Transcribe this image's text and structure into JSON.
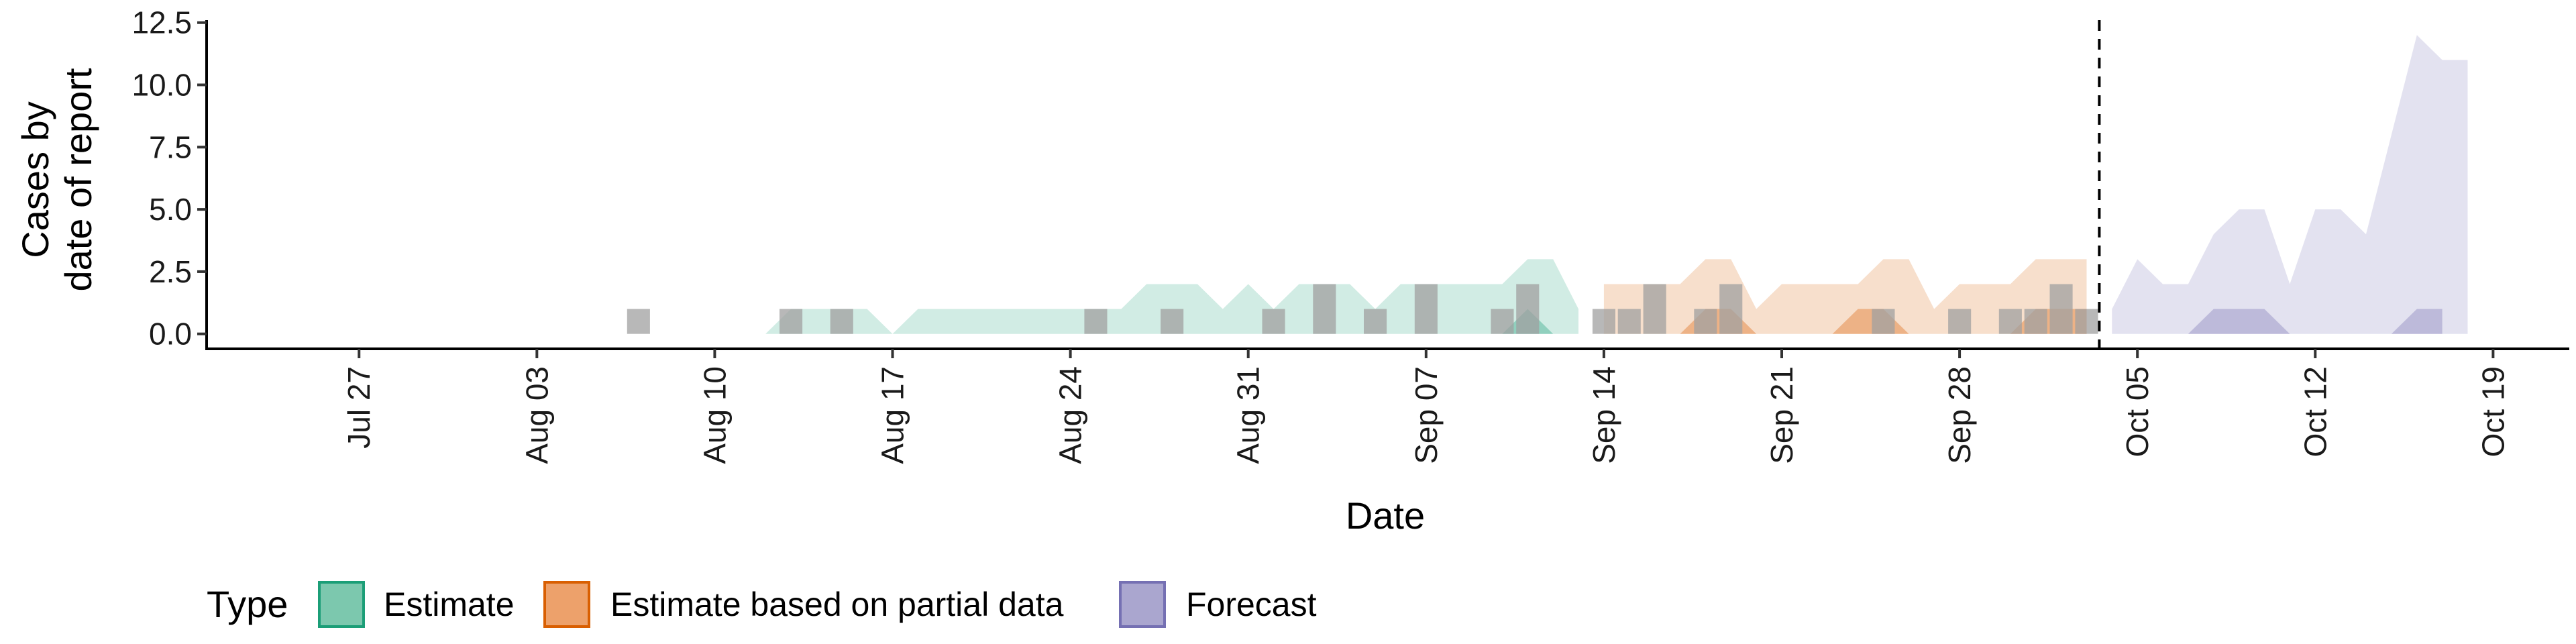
{
  "chart_data": {
    "type": "area",
    "xlabel": "Date",
    "ylabel_lines": [
      "Cases by",
      "date of report"
    ],
    "ylim": [
      -0.6,
      12.6
    ],
    "xlim": [
      "2020-07-21",
      "2020-10-22"
    ],
    "y_ticks": [
      "0.0",
      "2.5",
      "5.0",
      "7.5",
      "10.0",
      "12.5"
    ],
    "x_ticks": [
      {
        "date": "2020-07-27",
        "label": "Jul 27"
      },
      {
        "date": "2020-08-03",
        "label": "Aug 03"
      },
      {
        "date": "2020-08-10",
        "label": "Aug 10"
      },
      {
        "date": "2020-08-17",
        "label": "Aug 17"
      },
      {
        "date": "2020-08-24",
        "label": "Aug 24"
      },
      {
        "date": "2020-08-31",
        "label": "Aug 31"
      },
      {
        "date": "2020-09-07",
        "label": "Sep 07"
      },
      {
        "date": "2020-09-14",
        "label": "Sep 14"
      },
      {
        "date": "2020-09-21",
        "label": "Sep 21"
      },
      {
        "date": "2020-09-28",
        "label": "Sep 28"
      },
      {
        "date": "2020-10-05",
        "label": "Oct 05"
      },
      {
        "date": "2020-10-12",
        "label": "Oct 12"
      },
      {
        "date": "2020-10-19",
        "label": "Oct 19"
      }
    ],
    "forecast_line_date": "2020-10-03",
    "legend": {
      "title": "Type",
      "placement": "bottom-left",
      "entries": [
        {
          "label": "Estimate",
          "fill": "#7cc8ae",
          "stroke": "#1b9e77"
        },
        {
          "label": "Estimate based on partial data",
          "fill": "#eda16b",
          "stroke": "#d95f02"
        },
        {
          "label": "Forecast",
          "fill": "#aaa6cf",
          "stroke": "#7570b3"
        }
      ]
    },
    "series": [
      {
        "type": "Estimate",
        "color": "#1b9e77",
        "start_date": "2020-07-21",
        "upper": [
          0,
          0,
          0,
          0,
          0,
          0,
          0,
          0,
          0,
          0,
          0,
          0,
          0,
          0,
          0,
          0,
          0,
          0,
          0,
          0,
          0,
          0,
          0,
          0,
          0,
          0,
          0,
          0,
          0,
          0,
          0,
          0,
          0,
          0,
          0,
          0,
          0,
          0,
          0,
          0,
          0,
          0,
          0,
          0,
          0,
          0,
          0,
          0,
          0,
          0,
          0,
          0,
          0,
          0,
          0,
          0,
          0,
          0,
          0,
          0,
          0,
          0,
          0,
          0,
          0,
          0,
          0,
          0,
          0,
          0,
          0,
          0,
          0,
          0,
          0,
          0,
          0,
          0,
          0,
          0,
          0,
          0,
          0,
          0,
          0,
          0,
          0,
          0,
          0,
          0,
          0,
          0,
          0,
          0,
          0,
          0
        ],
        "lower": [
          0,
          0,
          0,
          0,
          0,
          0,
          0,
          0,
          0,
          0,
          0,
          0,
          0,
          0,
          0,
          0,
          0,
          0,
          0,
          0,
          0,
          0,
          0,
          0,
          0,
          0,
          0,
          0,
          0,
          0,
          0,
          0,
          0,
          0,
          0,
          0,
          0,
          0,
          0,
          0,
          0,
          0,
          0,
          0,
          0,
          0,
          0,
          0,
          0,
          0,
          0,
          0,
          0,
          0,
          0,
          0,
          0,
          0,
          0,
          0,
          0,
          0,
          0,
          0,
          0,
          0,
          0,
          0,
          0,
          0,
          0,
          0,
          0,
          0,
          0,
          0,
          0,
          0,
          0,
          0,
          0,
          0,
          0,
          0,
          0,
          0,
          0,
          0,
          0,
          0,
          0,
          0,
          0,
          0,
          0,
          0
        ]
      }
    ],
    "bands": [
      {
        "type": "Estimate",
        "x": [
          "2020-07-26",
          "2020-08-12",
          "2020-08-13",
          "2020-08-14",
          "2020-08-15",
          "2020-08-16",
          "2020-08-17",
          "2020-08-18",
          "2020-08-25",
          "2020-08-26",
          "2020-08-27",
          "2020-08-28",
          "2020-08-29",
          "2020-08-30",
          "2020-08-31",
          "2020-09-01",
          "2020-09-02",
          "2020-09-03",
          "2020-09-04",
          "2020-09-05",
          "2020-09-06",
          "2020-09-07",
          "2020-09-08",
          "2020-09-09",
          "2020-09-10",
          "2020-09-11",
          "2020-09-12",
          "2020-09-13"
        ],
        "upper": [
          0,
          0,
          1,
          1,
          1,
          1,
          0,
          1,
          1,
          1,
          2,
          2,
          2,
          1,
          2,
          1,
          2,
          2,
          2,
          1,
          2,
          2,
          2,
          2,
          2,
          3,
          3,
          1
        ],
        "lower": [
          0,
          0,
          0,
          0,
          0,
          0,
          0,
          0,
          0,
          0,
          0,
          0,
          0,
          0,
          0,
          0,
          0,
          0,
          0,
          0,
          0,
          0,
          0,
          0,
          0,
          0,
          0,
          0
        ],
        "inner_upper_x": [
          "2020-09-09",
          "2020-09-10",
          "2020-09-11",
          "2020-09-12"
        ],
        "inner_upper": [
          0,
          0,
          1,
          0
        ]
      },
      {
        "type": "Estimate based on partial data",
        "x": [
          "2020-09-14",
          "2020-09-15",
          "2020-09-16",
          "2020-09-17",
          "2020-09-18",
          "2020-09-19",
          "2020-09-20",
          "2020-09-21",
          "2020-09-22",
          "2020-09-23",
          "2020-09-24",
          "2020-09-25",
          "2020-09-26",
          "2020-09-27",
          "2020-09-28",
          "2020-09-29",
          "2020-09-30",
          "2020-10-01",
          "2020-10-02",
          "2020-10-03"
        ],
        "upper": [
          2,
          2,
          2,
          2,
          3,
          3,
          1,
          2,
          2,
          2,
          2,
          3,
          3,
          1,
          2,
          2,
          2,
          3,
          3,
          3
        ],
        "lower": [
          0,
          0,
          0,
          0,
          0,
          0,
          0,
          0,
          0,
          0,
          0,
          0,
          0,
          0,
          0,
          0,
          0,
          0,
          0,
          0
        ],
        "inner_upper_x": [
          "2020-09-17",
          "2020-09-18",
          "2020-09-19",
          "2020-09-20",
          "2020-09-23",
          "2020-09-24",
          "2020-09-25",
          "2020-09-26",
          "2020-09-29",
          "2020-09-30",
          "2020-10-01",
          "2020-10-02",
          "2020-10-03"
        ],
        "inner_upper": [
          0,
          1,
          1,
          0,
          0,
          1,
          1,
          0,
          0,
          0,
          1,
          1,
          1
        ]
      },
      {
        "type": "Forecast",
        "x": [
          "2020-10-04",
          "2020-10-05",
          "2020-10-06",
          "2020-10-07",
          "2020-10-08",
          "2020-10-09",
          "2020-10-10",
          "2020-10-11",
          "2020-10-12",
          "2020-10-13",
          "2020-10-14",
          "2020-10-15",
          "2020-10-16",
          "2020-10-17",
          "2020-10-18"
        ],
        "upper": [
          1,
          3,
          2,
          2,
          4,
          5,
          5,
          2,
          5,
          5,
          4,
          8,
          12,
          11,
          11
        ],
        "lower": [
          0,
          0,
          0,
          0,
          0,
          0,
          0,
          0,
          0,
          0,
          0,
          0,
          0,
          0,
          0
        ],
        "inner_upper_x": [
          "2020-10-07",
          "2020-10-08",
          "2020-10-09",
          "2020-10-10",
          "2020-10-11",
          "2020-10-15",
          "2020-10-16",
          "2020-10-17"
        ],
        "inner_upper": [
          0,
          1,
          1,
          1,
          0,
          0,
          1,
          1
        ]
      }
    ],
    "reported_cases": [
      {
        "date": "2020-08-07",
        "value": 1
      },
      {
        "date": "2020-08-13",
        "value": 1
      },
      {
        "date": "2020-08-15",
        "value": 1
      },
      {
        "date": "2020-08-25",
        "value": 1
      },
      {
        "date": "2020-08-28",
        "value": 1
      },
      {
        "date": "2020-09-01",
        "value": 1
      },
      {
        "date": "2020-09-03",
        "value": 2
      },
      {
        "date": "2020-09-05",
        "value": 1
      },
      {
        "date": "2020-09-07",
        "value": 2
      },
      {
        "date": "2020-09-10",
        "value": 1
      },
      {
        "date": "2020-09-11",
        "value": 2
      },
      {
        "date": "2020-09-14",
        "value": 1
      },
      {
        "date": "2020-09-15",
        "value": 1
      },
      {
        "date": "2020-09-16",
        "value": 2
      },
      {
        "date": "2020-09-18",
        "value": 1
      },
      {
        "date": "2020-09-19",
        "value": 2
      },
      {
        "date": "2020-09-25",
        "value": 1
      },
      {
        "date": "2020-09-28",
        "value": 1
      },
      {
        "date": "2020-09-30",
        "value": 1
      },
      {
        "date": "2020-10-01",
        "value": 1
      },
      {
        "date": "2020-10-02",
        "value": 2
      },
      {
        "date": "2020-10-03",
        "value": 1
      }
    ],
    "bar_color": "#a0a0a0"
  }
}
